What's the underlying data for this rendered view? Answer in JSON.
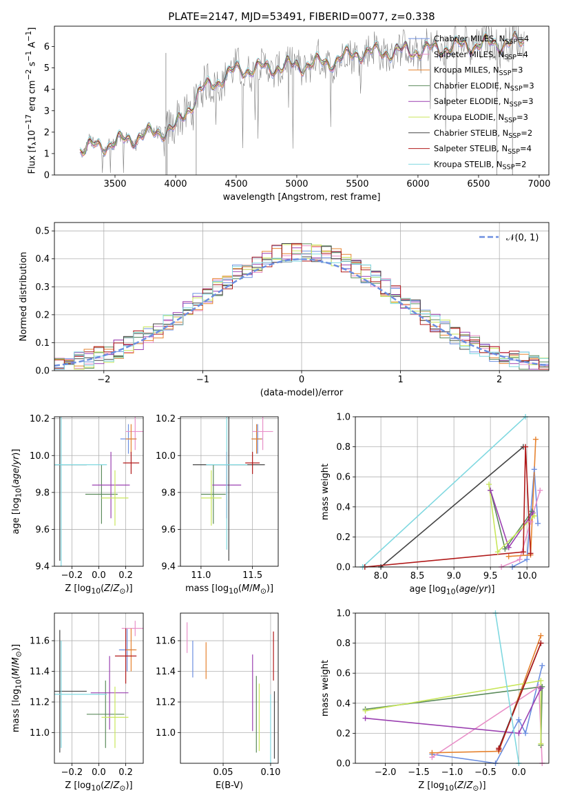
{
  "figure": {
    "title": "PLATE=2147, MJD=53491, FIBERID=0077, z=0.338"
  },
  "models": [
    {
      "label": "Chabrier MILES, N<sub>SSP</sub>=4",
      "color": "#6b8ee0"
    },
    {
      "label": "Salpeter MILES, N<sub>SSP</sub>=4",
      "color": "#e88fc8"
    },
    {
      "label": "Kroupa MILES, N<sub>SSP</sub>=3",
      "color": "#e6822e"
    },
    {
      "label": "Chabrier ELODIE, N<sub>SSP</sub>=3",
      "color": "#5a8a5a"
    },
    {
      "label": "Salpeter ELODIE, N<sub>SSP</sub>=3",
      "color": "#9a3fb0"
    },
    {
      "label": "Kroupa ELODIE, N<sub>SSP</sub>=3",
      "color": "#c8e65a"
    },
    {
      "label": "Chabrier STELIB, N<sub>SSP</sub>=2",
      "color": "#444444"
    },
    {
      "label": "Salpeter STELIB, N<sub>SSP</sub>=4",
      "color": "#b01818"
    },
    {
      "label": "Kroupa STELIB, N<sub>SSP</sub>=2",
      "color": "#7fd8e0"
    }
  ],
  "chart_data": [
    {
      "id": "spectrum",
      "type": "line",
      "xlabel": "wavelength [Angstrom, rest frame]",
      "ylabel": "Flux [f<sub>λ</sub>10<sup>−17</sup> erg cm<sup>−2</sup> s<sup>−1</sup> A<sup>−1</sup>]",
      "xlim": [
        3000,
        7080
      ],
      "ylim": [
        0,
        6.95
      ],
      "xticks": [
        3500,
        4000,
        4500,
        5000,
        5500,
        6000,
        6500,
        7000
      ],
      "yticks": [
        0,
        1,
        2,
        3,
        4,
        5,
        6
      ],
      "legend_position": "upper right",
      "data_color": "#7f7f7f",
      "data_range": [
        3210,
        6880
      ],
      "model_envelope": {
        "x": [
          3210,
          3500,
          3700,
          4000,
          4200,
          4500,
          5000,
          5300,
          5500,
          6000,
          6500,
          6880
        ],
        "y": [
          1.2,
          1.5,
          1.8,
          2.2,
          3.9,
          4.9,
          5.1,
          5.3,
          5.7,
          5.8,
          6.1,
          6.2
        ]
      }
    },
    {
      "id": "residuals",
      "type": "step",
      "xlabel": "(data-model)/error",
      "ylabel": "Normed distribution",
      "xlim": [
        -2.5,
        2.5
      ],
      "ylim": [
        0,
        0.53
      ],
      "xticks": [
        -2,
        -1,
        0,
        1,
        2
      ],
      "yticks": [
        0,
        0.1,
        0.2,
        0.3,
        0.4,
        0.5
      ],
      "xticklabels": [
        "−2",
        "−1",
        "0",
        "1",
        "2"
      ],
      "yticklabels": [
        "0.0",
        "0.1",
        "0.2",
        "0.3",
        "0.4",
        "0.5"
      ],
      "reference_label": "𝒩(0, 1)",
      "reference_color": "#6b8ee0"
    },
    {
      "id": "age_vs_Z",
      "type": "errorbar",
      "xlabel": "Z [log<sub>10</sub>(<i>Z</i>/<i>Z</i><sub>⊙</sub>)]",
      "ylabel": "age  [log<sub>10</sub>(<i>age</i>/<i>yr</i>)]",
      "xlim": [
        -0.33,
        0.33
      ],
      "ylim": [
        9.4,
        10.21
      ],
      "xticks": [
        -0.2,
        0,
        0.2
      ],
      "xticklabels": [
        "−0.2",
        "0.0",
        "0.2"
      ],
      "yticks": [
        9.4,
        9.6,
        9.8,
        10.0,
        10.2
      ],
      "yticklabels": [
        "9.4",
        "9.6",
        "9.8",
        "10.0",
        "10.2"
      ],
      "points": [
        {
          "m": 0,
          "x": 0.22,
          "y": 10.09,
          "ex": 0.06,
          "ey": 0.08
        },
        {
          "m": 1,
          "x": 0.27,
          "y": 10.13,
          "ex": 0.07,
          "ey": 0.1
        },
        {
          "m": 2,
          "x": 0.24,
          "y": 10.09,
          "ex": 0.04,
          "ey": 0.08
        },
        {
          "m": 3,
          "x": 0.02,
          "y": 9.79,
          "ex": 0.12,
          "ey": 0.16
        },
        {
          "m": 4,
          "x": 0.09,
          "y": 9.84,
          "ex": 0.14,
          "ey": 0.18
        },
        {
          "m": 5,
          "x": 0.12,
          "y": 9.77,
          "ex": 0.1,
          "ey": 0.15
        },
        {
          "m": 6,
          "x": -0.29,
          "y": 9.95,
          "ex": 0.2,
          "ey": 0.52
        },
        {
          "m": 7,
          "x": 0.24,
          "y": 9.96,
          "ex": 0.06,
          "ey": 0.06
        },
        {
          "m": 8,
          "x": -0.28,
          "y": 9.95,
          "ex": 0.34,
          "ey": 0.56
        }
      ]
    },
    {
      "id": "age_vs_mass",
      "type": "errorbar",
      "xlabel": "mass [log<sub>10</sub>(<i>M</i>/<i>M</i><sub>⊙</sub>)]",
      "ylabel": "",
      "xlim": [
        10.8,
        11.75
      ],
      "ylim": [
        9.4,
        10.21
      ],
      "xticks": [
        11.0,
        11.5
      ],
      "xticklabels": [
        "11.0",
        "11.5"
      ],
      "yticks": [
        9.4,
        9.6,
        9.8,
        10.0,
        10.2
      ],
      "yticklabels": [
        "9.4",
        "9.6",
        "9.8",
        "10.0",
        "10.2"
      ],
      "points": [
        {
          "m": 0,
          "x": 11.55,
          "y": 10.09,
          "ex": 0.05,
          "ey": 0.08
        },
        {
          "m": 1,
          "x": 11.6,
          "y": 10.13,
          "ex": 0.1,
          "ey": 0.1
        },
        {
          "m": 2,
          "x": 11.54,
          "y": 10.09,
          "ex": 0.05,
          "ey": 0.08
        },
        {
          "m": 3,
          "x": 11.12,
          "y": 9.79,
          "ex": 0.12,
          "ey": 0.16
        },
        {
          "m": 4,
          "x": 11.25,
          "y": 9.84,
          "ex": 0.14,
          "ey": 0.18
        },
        {
          "m": 5,
          "x": 11.1,
          "y": 9.77,
          "ex": 0.1,
          "ey": 0.15
        },
        {
          "m": 6,
          "x": 11.27,
          "y": 9.95,
          "ex": 0.35,
          "ey": 0.52
        },
        {
          "m": 7,
          "x": 11.5,
          "y": 9.96,
          "ex": 0.07,
          "ey": 0.06
        },
        {
          "m": 8,
          "x": 11.25,
          "y": 9.95,
          "ex": 0.2,
          "ey": 0.46
        }
      ]
    },
    {
      "id": "weight_vs_age",
      "type": "line",
      "xlabel": "age  [log<sub>10</sub>(<i>age</i>/<i>yr</i>)]",
      "ylabel": "mass weight",
      "xlim": [
        7.65,
        10.3
      ],
      "ylim": [
        0,
        1.0
      ],
      "xticks": [
        8.0,
        8.5,
        9.0,
        9.5,
        10.0
      ],
      "xticklabels": [
        "8.0",
        "8.5",
        "9.0",
        "9.5",
        "10.0"
      ],
      "yticks": [
        0,
        0.2,
        0.4,
        0.6,
        0.8,
        1.0
      ],
      "yticklabels": [
        "0.0",
        "0.2",
        "0.4",
        "0.6",
        "0.8",
        "1.0"
      ],
      "series": [
        {
          "m": 0,
          "x": [
            9.8,
            10.0,
            10.1,
            10.15
          ],
          "y": [
            0.0,
            0.05,
            0.65,
            0.29
          ]
        },
        {
          "m": 1,
          "x": [
            9.65,
            9.9,
            10.05,
            10.18
          ],
          "y": [
            0.0,
            0.05,
            0.3,
            0.51
          ]
        },
        {
          "m": 2,
          "x": [
            9.75,
            10.05,
            10.12
          ],
          "y": [
            0.07,
            0.08,
            0.85
          ]
        },
        {
          "m": 3,
          "x": [
            9.5,
            9.7,
            10.07
          ],
          "y": [
            0.51,
            0.12,
            0.37
          ]
        },
        {
          "m": 4,
          "x": [
            9.5,
            9.75,
            10.08
          ],
          "y": [
            0.51,
            0.13,
            0.36
          ]
        },
        {
          "m": 5,
          "x": [
            9.48,
            9.6,
            10.1
          ],
          "y": [
            0.55,
            0.1,
            0.34
          ]
        },
        {
          "m": 6,
          "x": [
            8.0,
            9.95
          ],
          "y": [
            0.0,
            0.8
          ]
        },
        {
          "m": 7,
          "x": [
            7.78,
            9.95,
            9.98,
            10.05
          ],
          "y": [
            0.0,
            0.1,
            0.8,
            0.09
          ]
        },
        {
          "m": 8,
          "x": [
            7.75,
            9.98
          ],
          "y": [
            0.0,
            1.0
          ]
        }
      ]
    },
    {
      "id": "mass_vs_Z",
      "type": "errorbar",
      "xlabel": "Z [log<sub>10</sub>(<i>Z</i>/<i>Z</i><sub>⊙</sub>)]",
      "ylabel": "mass [log<sub>10</sub>(<i>M</i>/<i>M</i><sub>⊙</sub>)]",
      "xlim": [
        -0.33,
        0.33
      ],
      "ylim": [
        10.8,
        11.78
      ],
      "xticks": [
        -0.2,
        0,
        0.2
      ],
      "xticklabels": [
        "−0.2",
        "0.0",
        "0.2"
      ],
      "yticks": [
        11.0,
        11.2,
        11.4,
        11.6
      ],
      "yticklabels": [
        "11.0",
        "11.2",
        "11.4",
        "11.6"
      ],
      "points": [
        {
          "m": 0,
          "x": 0.21,
          "y": 11.54,
          "ex": 0.06,
          "ey": 0.14
        },
        {
          "m": 1,
          "x": 0.27,
          "y": 11.68,
          "ex": 0.1,
          "ey": 0.05
        },
        {
          "m": 2,
          "x": 0.24,
          "y": 11.54,
          "ex": 0.04,
          "ey": 0.14
        },
        {
          "m": 3,
          "x": 0.05,
          "y": 11.12,
          "ex": 0.14,
          "ey": 0.22
        },
        {
          "m": 4,
          "x": 0.08,
          "y": 11.26,
          "ex": 0.14,
          "ey": 0.24
        },
        {
          "m": 5,
          "x": 0.12,
          "y": 11.1,
          "ex": 0.1,
          "ey": 0.2
        },
        {
          "m": 6,
          "x": -0.29,
          "y": 11.27,
          "ex": 0.2,
          "ey": 0.4
        },
        {
          "m": 7,
          "x": 0.2,
          "y": 11.5,
          "ex": 0.08,
          "ey": 0.18
        },
        {
          "m": 8,
          "x": -0.28,
          "y": 11.25,
          "ex": 0.34,
          "ey": 0.35
        }
      ]
    },
    {
      "id": "mass_vs_ebv",
      "type": "errorbar",
      "xlabel": "E(B-V)",
      "ylabel": "",
      "xlim": [
        0.005,
        0.108
      ],
      "ylim": [
        10.8,
        11.78
      ],
      "xticks": [
        0.05,
        0.1
      ],
      "xticklabels": [
        "0.05",
        "0.10"
      ],
      "yticks": [
        11.0,
        11.2,
        11.4,
        11.6
      ],
      "yticklabels": [
        "11.0",
        "11.2",
        "11.4",
        "11.6"
      ],
      "points": [
        {
          "m": 0,
          "x": 0.018,
          "y": 11.48,
          "ex": 0,
          "ey": 0.12
        },
        {
          "m": 1,
          "x": 0.012,
          "y": 11.62,
          "ex": 0,
          "ey": 0.1
        },
        {
          "m": 2,
          "x": 0.032,
          "y": 11.47,
          "ex": 0,
          "ey": 0.12
        },
        {
          "m": 3,
          "x": 0.085,
          "y": 11.12,
          "ex": 0,
          "ey": 0.25
        },
        {
          "m": 4,
          "x": 0.081,
          "y": 11.26,
          "ex": 0,
          "ey": 0.25
        },
        {
          "m": 5,
          "x": 0.088,
          "y": 11.1,
          "ex": 0,
          "ey": 0.22
        },
        {
          "m": 6,
          "x": 0.104,
          "y": 11.05,
          "ex": 0,
          "ey": 0.22
        },
        {
          "m": 7,
          "x": 0.103,
          "y": 11.5,
          "ex": 0,
          "ey": 0.16
        },
        {
          "m": 8,
          "x": 0.1,
          "y": 11.0,
          "ex": 0,
          "ey": 0.25
        }
      ]
    },
    {
      "id": "weight_vs_Z",
      "type": "line",
      "xlabel": "Z [log<sub>10</sub>(<i>Z</i>/<i>Z</i><sub>⊙</sub>)]",
      "ylabel": "mass weight",
      "xlim": [
        -2.45,
        0.45
      ],
      "ylim": [
        0,
        1.0
      ],
      "xticks": [
        -2.0,
        -1.5,
        -1.0,
        -0.5,
        0.0
      ],
      "xticklabels": [
        "−2.0",
        "−1.5",
        "−1.0",
        "−0.5",
        "0.0"
      ],
      "yticks": [
        0,
        0.2,
        0.4,
        0.6,
        0.8,
        1.0
      ],
      "yticklabels": [
        "0.0",
        "0.2",
        "0.4",
        "0.6",
        "0.8",
        "1.0"
      ],
      "series": [
        {
          "m": 0,
          "x": [
            -1.3,
            -0.35,
            0.0,
            0.1,
            0.35
          ],
          "y": [
            0.06,
            0.0,
            0.29,
            0.2,
            0.65
          ]
        },
        {
          "m": 1,
          "x": [
            -1.3,
            0.3,
            0.35
          ],
          "y": [
            0.04,
            0.51,
            0.0
          ]
        },
        {
          "m": 2,
          "x": [
            -1.3,
            -0.3,
            0.33
          ],
          "y": [
            0.07,
            0.08,
            0.85
          ]
        },
        {
          "m": 3,
          "x": [
            -2.3,
            0.35,
            0.33
          ],
          "y": [
            0.36,
            0.51,
            0.12
          ]
        },
        {
          "m": 4,
          "x": [
            -2.3,
            0.0,
            0.33
          ],
          "y": [
            0.3,
            0.2,
            0.5
          ]
        },
        {
          "m": 5,
          "x": [
            -2.3,
            0.33,
            0.33
          ],
          "y": [
            0.35,
            0.55,
            0.13
          ]
        },
        {
          "m": 6,
          "x": [
            -0.3,
            0.33
          ],
          "y": [
            0.1,
            0.8
          ]
        },
        {
          "m": 7,
          "x": [
            -0.3,
            -0.3,
            0.33
          ],
          "y": [
            0.1,
            0.09,
            0.8
          ]
        },
        {
          "m": 8,
          "x": [
            -0.35,
            0.0
          ],
          "y": [
            1.0,
            0.0
          ]
        }
      ]
    }
  ]
}
